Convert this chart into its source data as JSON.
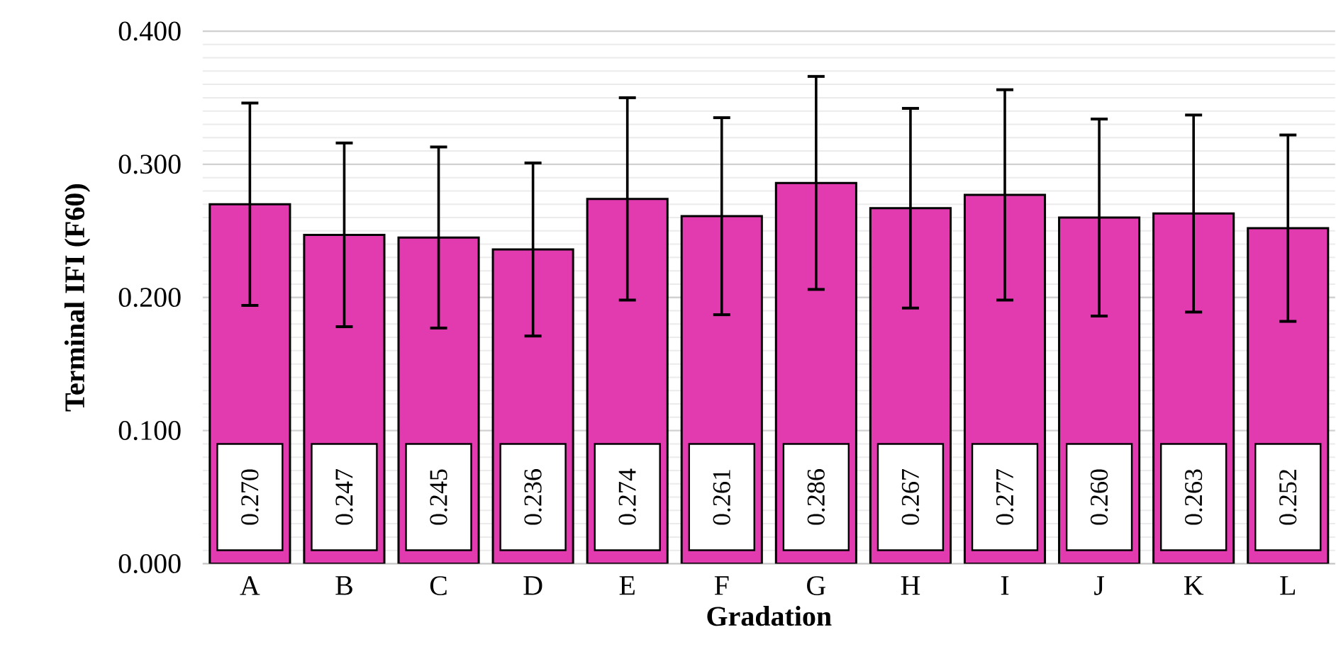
{
  "chart_data": {
    "type": "bar",
    "xlabel": "Gradation",
    "ylabel": "Terminal IFI (F60)",
    "categories": [
      "A",
      "B",
      "C",
      "D",
      "E",
      "F",
      "G",
      "H",
      "I",
      "J",
      "K",
      "L"
    ],
    "values": [
      0.27,
      0.247,
      0.245,
      0.236,
      0.274,
      0.261,
      0.286,
      0.267,
      0.277,
      0.26,
      0.263,
      0.252
    ],
    "value_labels": [
      "0.270",
      "0.247",
      "0.245",
      "0.236",
      "0.274",
      "0.261",
      "0.286",
      "0.267",
      "0.277",
      "0.260",
      "0.263",
      "0.252"
    ],
    "errors": [
      0.076,
      0.069,
      0.068,
      0.065,
      0.076,
      0.074,
      0.08,
      0.075,
      0.079,
      0.074,
      0.074,
      0.07
    ],
    "color": "#e23bb0",
    "ylim": [
      0,
      0.4
    ],
    "yticks": [
      {
        "value": 0,
        "label": "0.000"
      },
      {
        "value": 0.1,
        "label": "0.100"
      },
      {
        "value": 0.2,
        "label": "0.200"
      },
      {
        "value": 0.3,
        "label": "0.300"
      },
      {
        "value": 0.4,
        "label": "0.400"
      }
    ],
    "grid": "y"
  }
}
